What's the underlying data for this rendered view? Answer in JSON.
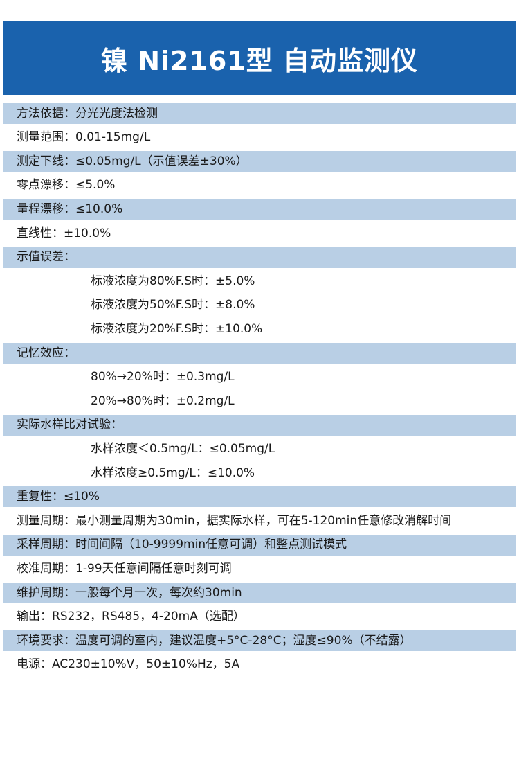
{
  "title": "镍 Ni2161型 自动监测仪",
  "colors": {
    "header": "#1a62ad",
    "stripe": "#b9cfe5"
  },
  "rows": [
    {
      "text": "方法依据：分光光度法检测",
      "shaded": true,
      "indent": false
    },
    {
      "text": "测量范围：0.01-15mg/L",
      "shaded": false,
      "indent": false
    },
    {
      "text": "测定下线：≤0.05mg/L（示值误差±30%）",
      "shaded": true,
      "indent": false
    },
    {
      "text": "零点漂移：≤5.0%",
      "shaded": false,
      "indent": false
    },
    {
      "text": "量程漂移：≤10.0%",
      "shaded": true,
      "indent": false
    },
    {
      "text": "直线性：±10.0%",
      "shaded": false,
      "indent": false
    },
    {
      "text": "示值误差：",
      "shaded": true,
      "indent": false
    },
    {
      "text": "标液浓度为80%F.S时：±5.0%",
      "shaded": false,
      "indent": true
    },
    {
      "text": "标液浓度为50%F.S时：±8.0%",
      "shaded": false,
      "indent": true
    },
    {
      "text": "标液浓度为20%F.S时：±10.0%",
      "shaded": false,
      "indent": true
    },
    {
      "text": "记忆效应：",
      "shaded": true,
      "indent": false
    },
    {
      "text": "80%→20%时：±0.3mg/L",
      "shaded": false,
      "indent": true
    },
    {
      "text": "20%→80%时：±0.2mg/L",
      "shaded": false,
      "indent": true
    },
    {
      "text": "实际水样比对试验：",
      "shaded": true,
      "indent": false
    },
    {
      "text": "水样浓度＜0.5mg/L：≤0.05mg/L",
      "shaded": false,
      "indent": true
    },
    {
      "text": "水样浓度≥0.5mg/L：≤10.0%",
      "shaded": false,
      "indent": true
    },
    {
      "text": "重复性：≤10%",
      "shaded": true,
      "indent": false
    },
    {
      "text": "测量周期：最小测量周期为30min，据实际水样，可在5-120min任意修改消解时间",
      "shaded": false,
      "indent": false
    },
    {
      "text": "采样周期：时间间隔（10-9999min任意可调）和整点测试模式",
      "shaded": true,
      "indent": false
    },
    {
      "text": "校准周期：1-99天任意间隔任意时刻可调",
      "shaded": false,
      "indent": false
    },
    {
      "text": "维护周期：一般每个月一次，每次约30min",
      "shaded": true,
      "indent": false
    },
    {
      "text": "输出：RS232，RS485，4-20mA（选配）",
      "shaded": false,
      "indent": false
    },
    {
      "text": "环境要求：温度可调的室内，建议温度+5°C-28°C；湿度≤90%（不结露）",
      "shaded": true,
      "indent": false
    },
    {
      "text": "电源：AC230±10%V，50±10%Hz，5A",
      "shaded": false,
      "indent": false
    }
  ]
}
